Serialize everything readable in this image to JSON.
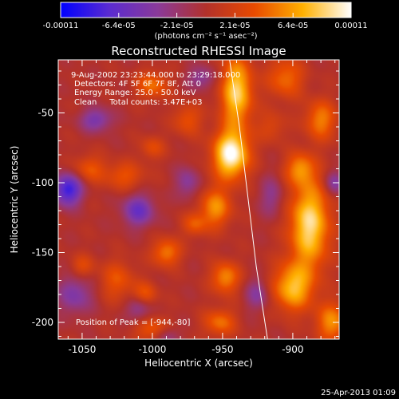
{
  "colorbar": {
    "tick_labels": [
      "-0.00011",
      "-6.4e-05",
      "-2.1e-05",
      "2.1e-05",
      "6.4e-05",
      "0.00011"
    ],
    "unit_label": "(photons cm⁻² s⁻¹ asec⁻²)",
    "range": [
      -0.00011,
      0.00011
    ],
    "colors": [
      "#0000ff",
      "#5a2bd0",
      "#8a3a9a",
      "#b2312b",
      "#e84a00",
      "#ffb000",
      "#ffffff"
    ]
  },
  "footer": {
    "timestamp": "25-Apr-2013 01:09"
  },
  "chart_data": {
    "type": "heatmap",
    "title": "Reconstructed RHESSI Image",
    "xlabel": "Heliocentric X (arcsec)",
    "ylabel": "Heliocentric Y (arcsec)",
    "xlim": [
      -1067,
      -867
    ],
    "ylim": [
      -212,
      -12
    ],
    "x_ticks": [
      -1050,
      -1000,
      -950,
      -900
    ],
    "y_ticks": [
      -50,
      -100,
      -150,
      -200
    ],
    "annotations": [
      "9-Aug-2002 23:23:44.000 to 23:29:18.000",
      "Detectors: 4F 5F 6F 7F 8F, Att 0",
      "Energy Range: 25.0 - 50.0 keV",
      "Clean     Total counts: 3.47E+03"
    ],
    "peak_label": "Position of Peak = [-944,-80]",
    "peak": [
      -944,
      -80
    ],
    "limb_line": [
      [
        -945,
        -12
      ],
      [
        -938,
        -60
      ],
      [
        -932,
        -110
      ],
      [
        -926,
        -160
      ],
      [
        -918,
        -212
      ]
    ],
    "blobs": [
      {
        "x": -944,
        "y": -80,
        "sx": 9,
        "sy": 12,
        "v": 1.0
      },
      {
        "x": -940,
        "y": -35,
        "sx": 8,
        "sy": 18,
        "v": 0.8
      },
      {
        "x": -955,
        "y": -118,
        "sx": 8,
        "sy": 10,
        "v": 0.55
      },
      {
        "x": -948,
        "y": -168,
        "sx": 7,
        "sy": 8,
        "v": 0.55
      },
      {
        "x": -952,
        "y": -200,
        "sx": 8,
        "sy": 7,
        "v": 0.45
      },
      {
        "x": -888,
        "y": -130,
        "sx": 10,
        "sy": 22,
        "v": 0.85
      },
      {
        "x": -900,
        "y": -175,
        "sx": 10,
        "sy": 12,
        "v": 0.7
      },
      {
        "x": -872,
        "y": -200,
        "sx": 8,
        "sy": 10,
        "v": 0.55
      },
      {
        "x": -895,
        "y": -90,
        "sx": 7,
        "sy": 8,
        "v": 0.5
      },
      {
        "x": -880,
        "y": -55,
        "sx": 8,
        "sy": 10,
        "v": 0.5
      },
      {
        "x": -905,
        "y": -25,
        "sx": 9,
        "sy": 10,
        "v": 0.45
      },
      {
        "x": -915,
        "y": -60,
        "sx": 7,
        "sy": 8,
        "v": 0.25
      },
      {
        "x": -1000,
        "y": -30,
        "sx": 8,
        "sy": 7,
        "v": 0.45
      },
      {
        "x": -975,
        "y": -55,
        "sx": 7,
        "sy": 8,
        "v": 0.35
      },
      {
        "x": -1000,
        "y": -75,
        "sx": 6,
        "sy": 6,
        "v": 0.3
      },
      {
        "x": -1020,
        "y": -95,
        "sx": 10,
        "sy": 7,
        "v": 0.35
      },
      {
        "x": -1045,
        "y": -90,
        "sx": 8,
        "sy": 7,
        "v": 0.35
      },
      {
        "x": -990,
        "y": -150,
        "sx": 7,
        "sy": 7,
        "v": 0.5
      },
      {
        "x": -970,
        "y": -130,
        "sx": 6,
        "sy": 6,
        "v": 0.35
      },
      {
        "x": -1025,
        "y": -170,
        "sx": 9,
        "sy": 10,
        "v": 0.35
      },
      {
        "x": -1050,
        "y": -160,
        "sx": 6,
        "sy": 6,
        "v": 0.3
      },
      {
        "x": -1005,
        "y": -180,
        "sx": 6,
        "sy": 6,
        "v": 0.35
      },
      {
        "x": -1000,
        "y": -205,
        "sx": 8,
        "sy": 6,
        "v": 0.4
      },
      {
        "x": -1040,
        "y": -55,
        "sx": 8,
        "sy": 6,
        "v": -0.45
      },
      {
        "x": -1060,
        "y": -105,
        "sx": 7,
        "sy": 8,
        "v": -0.8
      },
      {
        "x": -1055,
        "y": -180,
        "sx": 9,
        "sy": 10,
        "v": -0.4
      },
      {
        "x": -1010,
        "y": -120,
        "sx": 8,
        "sy": 8,
        "v": -0.55
      },
      {
        "x": -1010,
        "y": -190,
        "sx": 6,
        "sy": 6,
        "v": -0.35
      },
      {
        "x": -975,
        "y": -100,
        "sx": 6,
        "sy": 8,
        "v": -0.35
      },
      {
        "x": -925,
        "y": -180,
        "sx": 6,
        "sy": 8,
        "v": -0.35
      },
      {
        "x": -915,
        "y": -110,
        "sx": 6,
        "sy": 10,
        "v": -0.3
      },
      {
        "x": -870,
        "y": -100,
        "sx": 5,
        "sy": 6,
        "v": -0.4
      },
      {
        "x": -965,
        "y": -25,
        "sx": 7,
        "sy": 6,
        "v": -0.35
      },
      {
        "x": -990,
        "y": -210,
        "sx": 6,
        "sy": 5,
        "v": -0.3
      }
    ]
  }
}
